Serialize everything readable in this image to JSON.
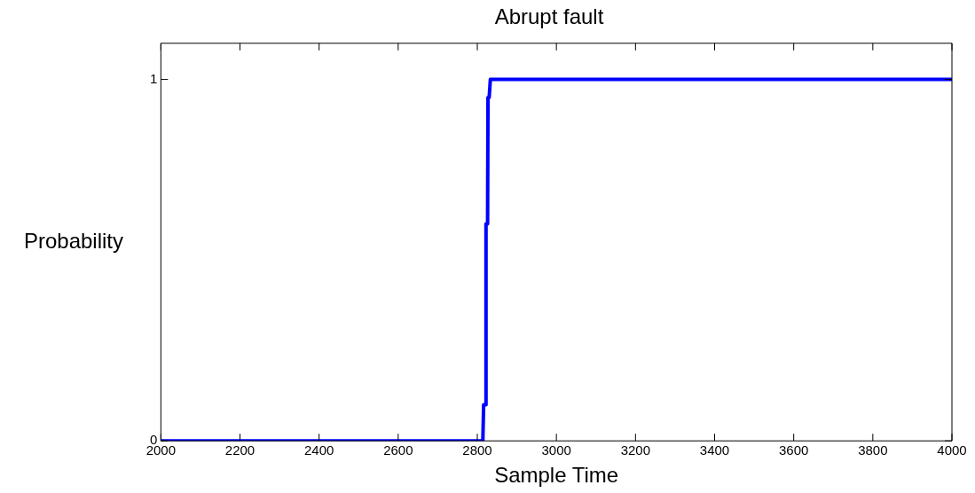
{
  "chart_data": {
    "type": "line",
    "title": "Abrupt fault",
    "xlabel": "Sample Time",
    "ylabel": "Probability",
    "series": [
      {
        "color": "#0000ff",
        "x": [
          2000,
          2814,
          2816,
          2822,
          2822,
          2826,
          2827,
          2830,
          2833,
          4000
        ],
        "values": [
          0,
          0,
          0.1,
          0.1,
          0.6,
          0.6,
          0.95,
          0.95,
          1,
          1
        ]
      }
    ],
    "xlim": [
      2000,
      4000
    ],
    "xticks": [
      2000,
      2200,
      2400,
      2600,
      2800,
      3000,
      3200,
      3400,
      3600,
      3800,
      4000
    ],
    "ylim": [
      0,
      1.1
    ],
    "yticks": [
      0,
      1
    ],
    "grid": false,
    "legend": false,
    "marker": "none",
    "line_style": "solid"
  }
}
